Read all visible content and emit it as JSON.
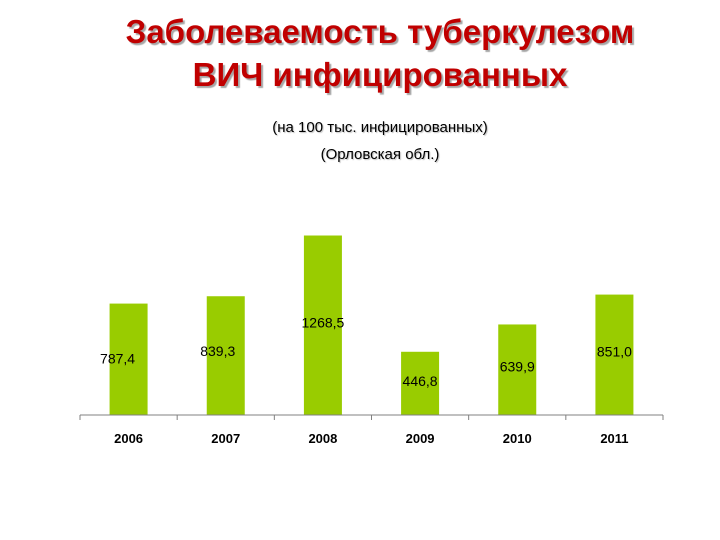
{
  "header": {
    "title_line1": "Заболеваемость туберкулезом",
    "title_line2": "ВИЧ инфицированных",
    "subtitle_line1": "(на 100 тыс. инфицированных)",
    "subtitle_line2": "(Орловская обл.)"
  },
  "colors": {
    "bar": "#99cc00",
    "title": "#c00000"
  },
  "chart_data": {
    "type": "bar",
    "categories": [
      "2006",
      "2007",
      "2008",
      "2009",
      "2010",
      "2011"
    ],
    "values": [
      787.4,
      839.3,
      1268.5,
      446.8,
      639.9,
      851.0
    ],
    "value_labels": [
      "787,4",
      "839,3",
      "1268,5",
      "446,8",
      "639,9",
      "851,0"
    ],
    "title": "Заболеваемость туберкулезом ВИЧ инфицированных",
    "subtitle": "(на 100 тыс. инфицированных) (Орловская обл.)",
    "xlabel": "",
    "ylabel": "",
    "ylim": [
      0,
      1400
    ],
    "grid": false,
    "legend": "none"
  }
}
